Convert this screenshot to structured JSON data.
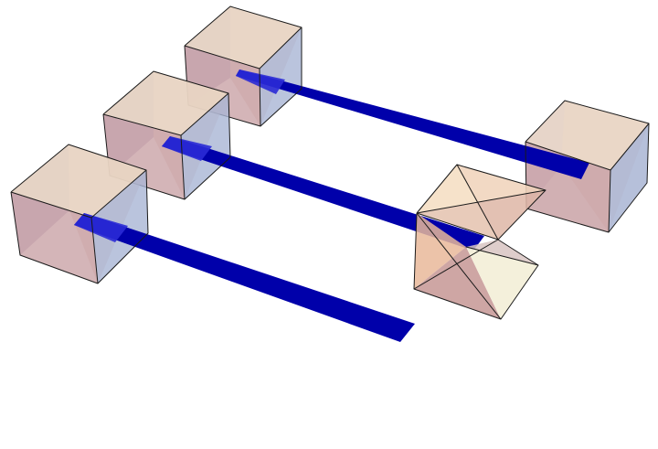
{
  "colors": {
    "background": "#ffffff",
    "bar": "#0000aa",
    "face_top": "#e9d6c4",
    "face_left": "#b9a6c6",
    "face_right": "#a9b5d4",
    "face_front": "#c9a2a6",
    "face_back": "#e2c4b4",
    "face_inner": "#dbb4aa",
    "tetra_light": "#fbe9cf",
    "tetra_mid": "#e9c3a8",
    "tetra_dark": "#c99c9a",
    "tetra_pale": "#f3efd9",
    "tetra_shadow": "#d8c4c2",
    "edge": "#1a1a1a"
  },
  "scene": {
    "cubes": [
      {
        "name": "back-left-cube"
      },
      {
        "name": "middle-left-cube"
      },
      {
        "name": "front-left-cube"
      },
      {
        "name": "right-cube"
      }
    ],
    "bars": [
      {
        "name": "back-bar"
      },
      {
        "name": "middle-bar"
      },
      {
        "name": "front-bar"
      }
    ],
    "tetrahedra": [
      {
        "name": "upper-tetrahedron"
      },
      {
        "name": "lower-tetrahedron"
      }
    ]
  }
}
